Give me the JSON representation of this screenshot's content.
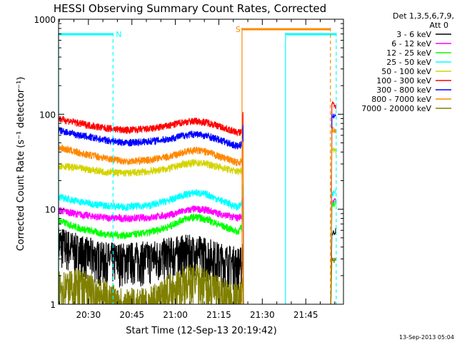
{
  "chart_data": {
    "type": "line",
    "title": "HESSI Observing Summary Count Rates, Corrected",
    "xlabel": "Start Time (12-Sep-13 20:19:42)",
    "ylabel": "Corrected Count Rate (s⁻¹ detector⁻¹)",
    "yscale": "log",
    "ylim": [
      1,
      1000
    ],
    "xlim": [
      "20:19:42",
      "21:58:00"
    ],
    "x_tick_labels": [
      "20:30",
      "20:45",
      "21:00",
      "21:15",
      "21:30",
      "21:45"
    ],
    "y_tick_labels": [
      "1",
      "10",
      "100",
      "1000"
    ],
    "legend_header": [
      "Det 1,3,5,6,7,9,",
      "Att 0"
    ],
    "legend_placement": "right",
    "footer_date": "13-Sep-2013 05:04",
    "flag_labels": {
      "night": "N",
      "saa": "S"
    },
    "flags": {
      "night": [
        [
          "20:19:42",
          "20:38:30"
        ],
        [
          "21:38:00",
          "21:55:30"
        ]
      ],
      "saa": [
        [
          "21:23:00",
          "21:53:30"
        ]
      ]
    },
    "series": [
      {
        "name": "3 - 6 keV",
        "color": "#000000",
        "values": [
          4.5,
          3.6,
          3.0,
          3.0,
          3.1,
          3.4,
          3.6,
          3.6,
          3.4,
          3.0,
          2.8,
          2.7,
          2.7
        ],
        "post": [
          5.5,
          6.0
        ]
      },
      {
        "name": "6 - 12 keV",
        "color": "#ff00ff",
        "values": [
          9.8,
          8.8,
          8.2,
          8.0,
          8.2,
          8.7,
          9.6,
          10.1,
          9.8,
          9.0,
          8.4,
          8.1,
          8.6
        ],
        "post": [
          11.5,
          12.5
        ]
      },
      {
        "name": "12 - 25 keV",
        "color": "#00ff00",
        "values": [
          7.6,
          6.3,
          5.5,
          5.3,
          5.7,
          6.6,
          7.9,
          8.3,
          7.8,
          6.9,
          6.2,
          5.8,
          6.4
        ],
        "post": [
          11.0,
          12.0
        ]
      },
      {
        "name": "25 - 50 keV",
        "color": "#00ffff",
        "values": [
          13.5,
          12.0,
          11.0,
          10.6,
          11.0,
          12.4,
          14.2,
          15.0,
          14.3,
          12.6,
          11.3,
          10.5,
          11.4
        ],
        "post": [
          14.0,
          16.0
        ]
      },
      {
        "name": "50 - 100 keV",
        "color": "#d4d400",
        "values": [
          29,
          27,
          25,
          24,
          25,
          27,
          30,
          31,
          30,
          28,
          26,
          25,
          26
        ],
        "post": [
          45,
          40
        ]
      },
      {
        "name": "100 - 300 keV",
        "color": "#ff0000",
        "values": [
          90,
          80,
          72,
          68,
          70,
          76,
          83,
          85,
          82,
          75,
          68,
          64,
          66
        ],
        "post": [
          130,
          120
        ]
      },
      {
        "name": "300 - 800 keV",
        "color": "#0000ff",
        "values": [
          68,
          60,
          54,
          50,
          52,
          55,
          60,
          62,
          59,
          54,
          49,
          46,
          48
        ],
        "post": [
          100,
          95
        ]
      },
      {
        "name": "800 - 7000 keV",
        "color": "#ff8800",
        "values": [
          45,
          39,
          35,
          32,
          33,
          36,
          40,
          42,
          40,
          36,
          33,
          31,
          32
        ],
        "post": [
          70,
          65
        ]
      },
      {
        "name": "7000 - 20000 keV",
        "color": "#808000",
        "values": [
          1.5,
          1.6,
          1.2,
          1.0,
          1.0,
          1.4,
          1.7,
          1.8,
          1.6,
          1.3,
          1.2,
          1.1,
          1.2
        ],
        "post": [
          3.0,
          2.8
        ]
      }
    ],
    "x": [
      "20:19:42",
      "20:27:00",
      "20:35:00",
      "20:43:00",
      "20:51:00",
      "20:58:00",
      "21:03:00",
      "21:07:00",
      "21:11:00",
      "21:15:00",
      "21:19:00",
      "21:21:30",
      "21:23:00"
    ],
    "post_x": [
      "21:54:00",
      "21:55:30"
    ]
  }
}
